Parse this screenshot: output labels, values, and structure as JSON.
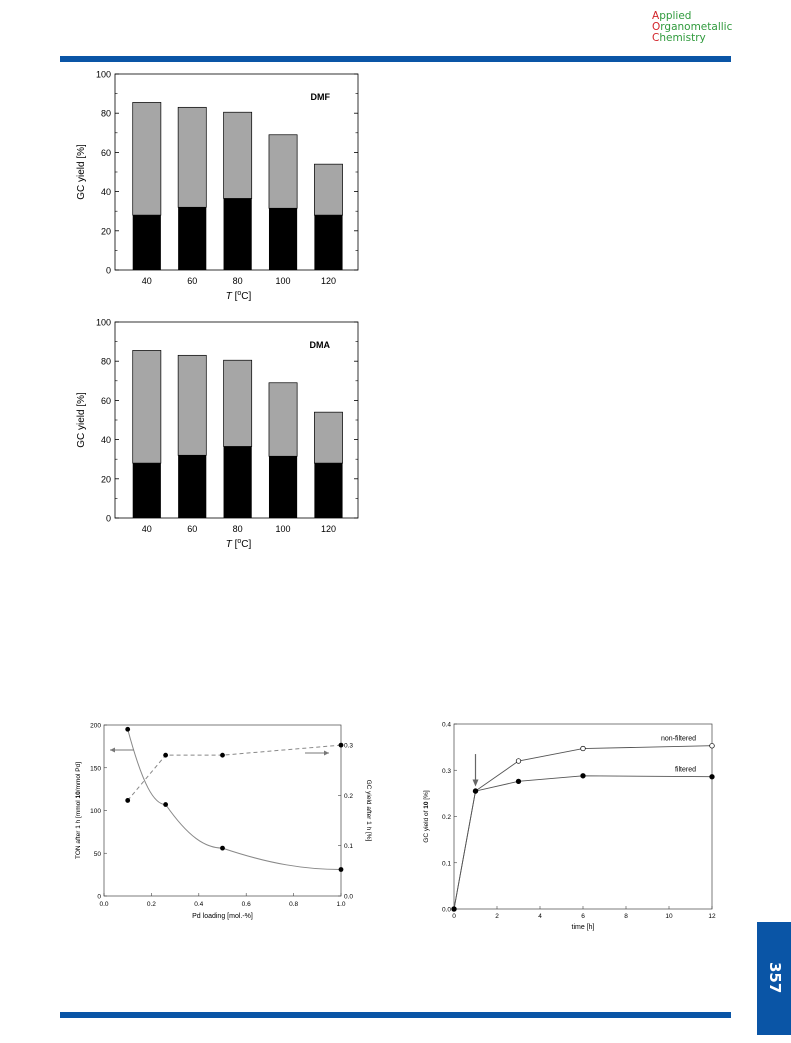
{
  "header": {
    "journal_line1": "Applied",
    "journal_line2": "Organometallic",
    "journal_line3": "Chemistry",
    "journal_caps": [
      "A",
      "O",
      "C"
    ]
  },
  "page_number": "357",
  "colors": {
    "rule": "#0a55a6",
    "logo_red": "#d2232a",
    "logo_green": "#2f9a3c",
    "bar_dark": "#000000",
    "bar_light": "#a6a6a6"
  },
  "chart_data": [
    {
      "type": "bar",
      "annotation": "DMF",
      "categories": [
        "40",
        "60",
        "80",
        "100",
        "120"
      ],
      "series": [
        {
          "values": [
            28,
            32,
            36.5,
            31.5,
            28
          ]
        },
        {
          "values": [
            85.5,
            83,
            80.5,
            69,
            54
          ]
        }
      ],
      "xlabel_italic": "T",
      "xlabel_rest": " [",
      "xlabel_sup": "o",
      "xlabel_end": "C]",
      "ylabel": "GC yield [%]",
      "ylim": [
        0,
        100
      ],
      "yticks": [
        "0",
        "20",
        "40",
        "60",
        "80",
        "100"
      ]
    },
    {
      "type": "bar",
      "annotation": "DMA",
      "categories": [
        "40",
        "60",
        "80",
        "100",
        "120"
      ],
      "series": [
        {
          "values": [
            28,
            32,
            36.5,
            31.5,
            28
          ]
        },
        {
          "values": [
            85.5,
            83,
            80.5,
            69,
            54
          ]
        }
      ],
      "xlabel_italic": "T",
      "xlabel_rest": " [",
      "xlabel_sup": "o",
      "xlabel_end": "C]",
      "ylabel": "GC yield [%]",
      "ylim": [
        0,
        100
      ],
      "yticks": [
        "0",
        "20",
        "40",
        "60",
        "80",
        "100"
      ]
    },
    {
      "type": "line",
      "x": [
        0.1,
        0.26,
        0.5,
        1.0
      ],
      "series": [
        {
          "axis": "left",
          "style": "solid",
          "values": [
            195,
            107,
            56,
            31
          ]
        },
        {
          "axis": "right",
          "style": "dashed",
          "values": [
            0.19,
            0.28,
            0.28,
            0.3
          ]
        }
      ],
      "xlabel": "Pd loading [mol.-%]",
      "ylabel_left_a": "TON after 1 h [mmol ",
      "ylabel_left_b": "10",
      "ylabel_left_c": "/mmol Pd]",
      "ylabel_right": "GC yield after 1 h [%]",
      "xlim": [
        0,
        1.0
      ],
      "ylim_left": [
        0,
        200
      ],
      "ylim_right": [
        0,
        0.34
      ],
      "xticks": [
        "0.0",
        "0.2",
        "0.4",
        "0.6",
        "0.8",
        "1.0"
      ],
      "yticks_left": [
        "0",
        "50",
        "100",
        "150",
        "200"
      ],
      "yticks_right": [
        "0.0",
        "0.1",
        "0.2",
        "0.3"
      ]
    },
    {
      "type": "line",
      "x": [
        0,
        1,
        3,
        6,
        12
      ],
      "series": [
        {
          "name": "non-filtered",
          "marker": "open",
          "values": [
            0,
            0.255,
            0.32,
            0.347,
            0.353
          ]
        },
        {
          "name": "filtered",
          "marker": "filled",
          "values": [
            0,
            0.255,
            0.276,
            0.288,
            0.286
          ]
        }
      ],
      "xlabel": "time [h]",
      "ylabel_a": "GC yield of ",
      "ylabel_b": "10",
      "ylabel_c": " [%]",
      "xlim": [
        0,
        12
      ],
      "ylim": [
        0,
        0.4
      ],
      "xticks": [
        "0",
        "2",
        "4",
        "6",
        "8",
        "10",
        "12"
      ],
      "yticks": [
        "0.0",
        "0.1",
        "0.2",
        "0.3",
        "0.4"
      ],
      "arrow_at_x": 1
    }
  ]
}
